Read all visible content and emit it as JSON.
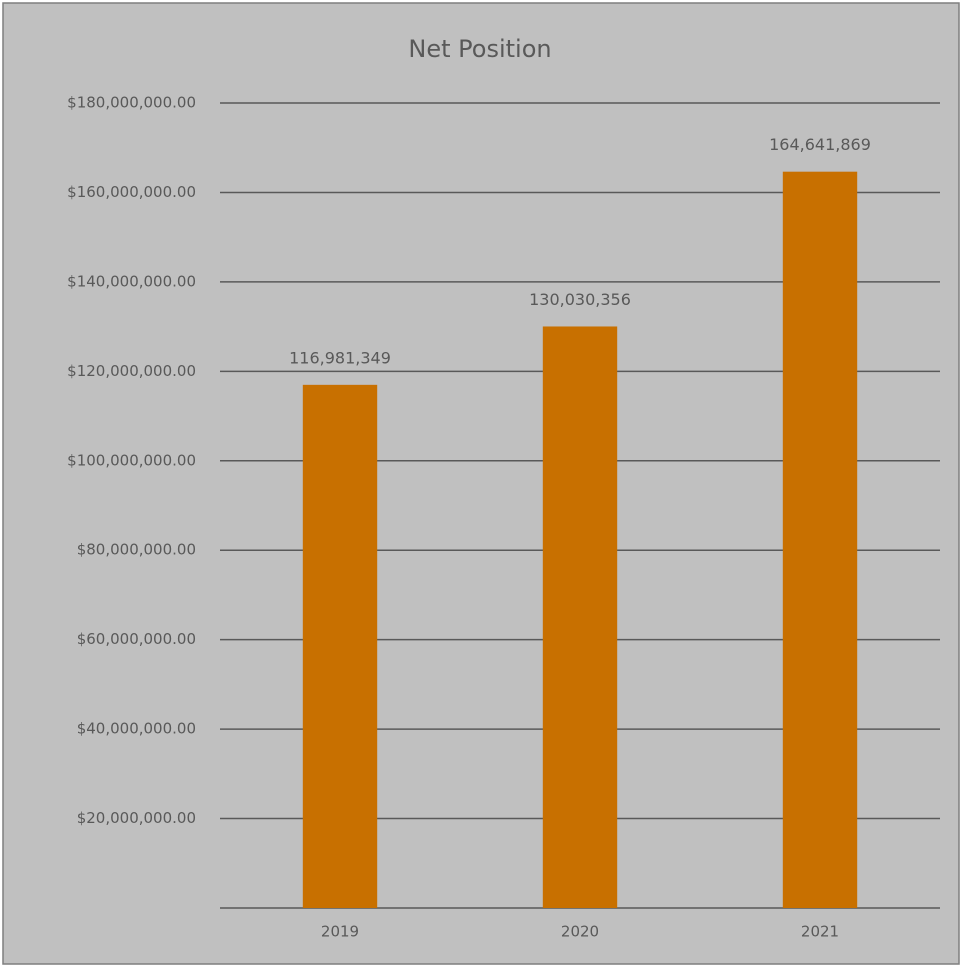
{
  "chart_data": {
    "type": "bar",
    "title": "Net Position",
    "categories": [
      "2019",
      "2020",
      "2021"
    ],
    "values": [
      116981349,
      130030356,
      164641869
    ],
    "value_labels": [
      "116,981,349",
      "130,030,356",
      "164,641,869"
    ],
    "color": "#c87000",
    "ylim": [
      0,
      180000000
    ],
    "yticks": [
      {
        "value": 20000000,
        "label": "$20,000,000.00"
      },
      {
        "value": 40000000,
        "label": "$40,000,000.00"
      },
      {
        "value": 60000000,
        "label": "$60,000,000.00"
      },
      {
        "value": 80000000,
        "label": "$80,000,000.00"
      },
      {
        "value": 100000000,
        "label": "$100,000,000.00"
      },
      {
        "value": 120000000,
        "label": "$120,000,000.00"
      },
      {
        "value": 140000000,
        "label": "$140,000,000.00"
      },
      {
        "value": 160000000,
        "label": "$160,000,000.00"
      },
      {
        "value": 180000000,
        "label": "$180,000,000.00"
      }
    ],
    "grid": true
  }
}
